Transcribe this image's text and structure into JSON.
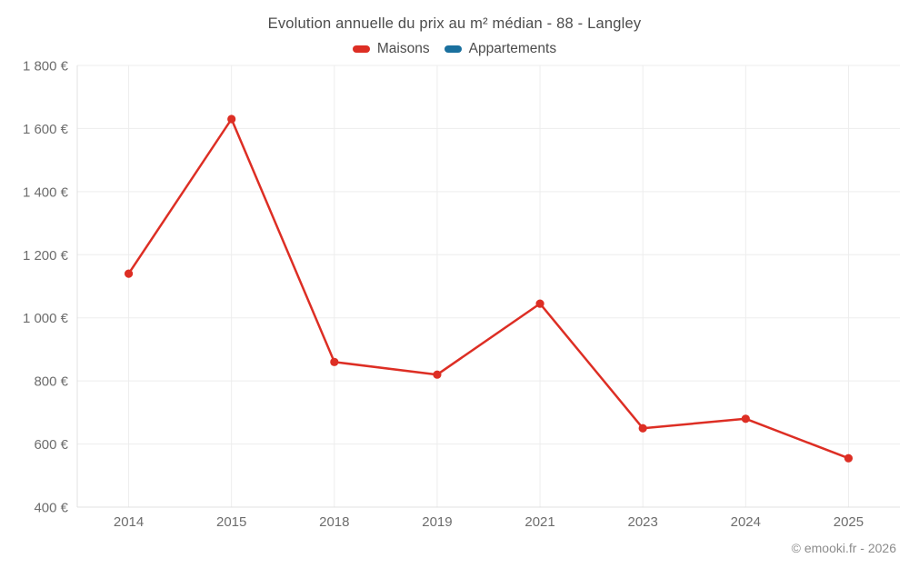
{
  "header": {
    "title": "Evolution annuelle du prix au m² médian - 88 - Langley"
  },
  "legend": [
    {
      "label": "Maisons",
      "color": "#dd2e24"
    },
    {
      "label": "Appartements",
      "color": "#1a709e"
    }
  ],
  "footer": {
    "credit": "© emooki.fr - 2026"
  },
  "chart_data": {
    "type": "line",
    "title": "Evolution annuelle du prix au m² médian - 88 - Langley",
    "xlabel": "",
    "ylabel": "",
    "categories": [
      "2014",
      "2015",
      "2018",
      "2019",
      "2021",
      "2023",
      "2024",
      "2025"
    ],
    "series": [
      {
        "name": "Maisons",
        "color": "#dd2e24",
        "values": [
          1140,
          1630,
          860,
          820,
          1045,
          650,
          680,
          555
        ]
      },
      {
        "name": "Appartements",
        "color": "#1a709e",
        "values": []
      }
    ],
    "ylim": [
      400,
      1800
    ],
    "yticks": [
      {
        "value": 400,
        "label": "400 €"
      },
      {
        "value": 600,
        "label": "600 €"
      },
      {
        "value": 800,
        "label": "800 €"
      },
      {
        "value": 1000,
        "label": "1 000 €"
      },
      {
        "value": 1200,
        "label": "1 200 €"
      },
      {
        "value": 1400,
        "label": "1 400 €"
      },
      {
        "value": 1600,
        "label": "1 600 €"
      },
      {
        "value": 1800,
        "label": "1 800 €"
      }
    ],
    "grid": true,
    "legend_position": "top",
    "grid_color": "#ededed",
    "axis_color": "#e0e0e0",
    "tick_color": "#6d6d6d",
    "currency_suffix": " €"
  }
}
